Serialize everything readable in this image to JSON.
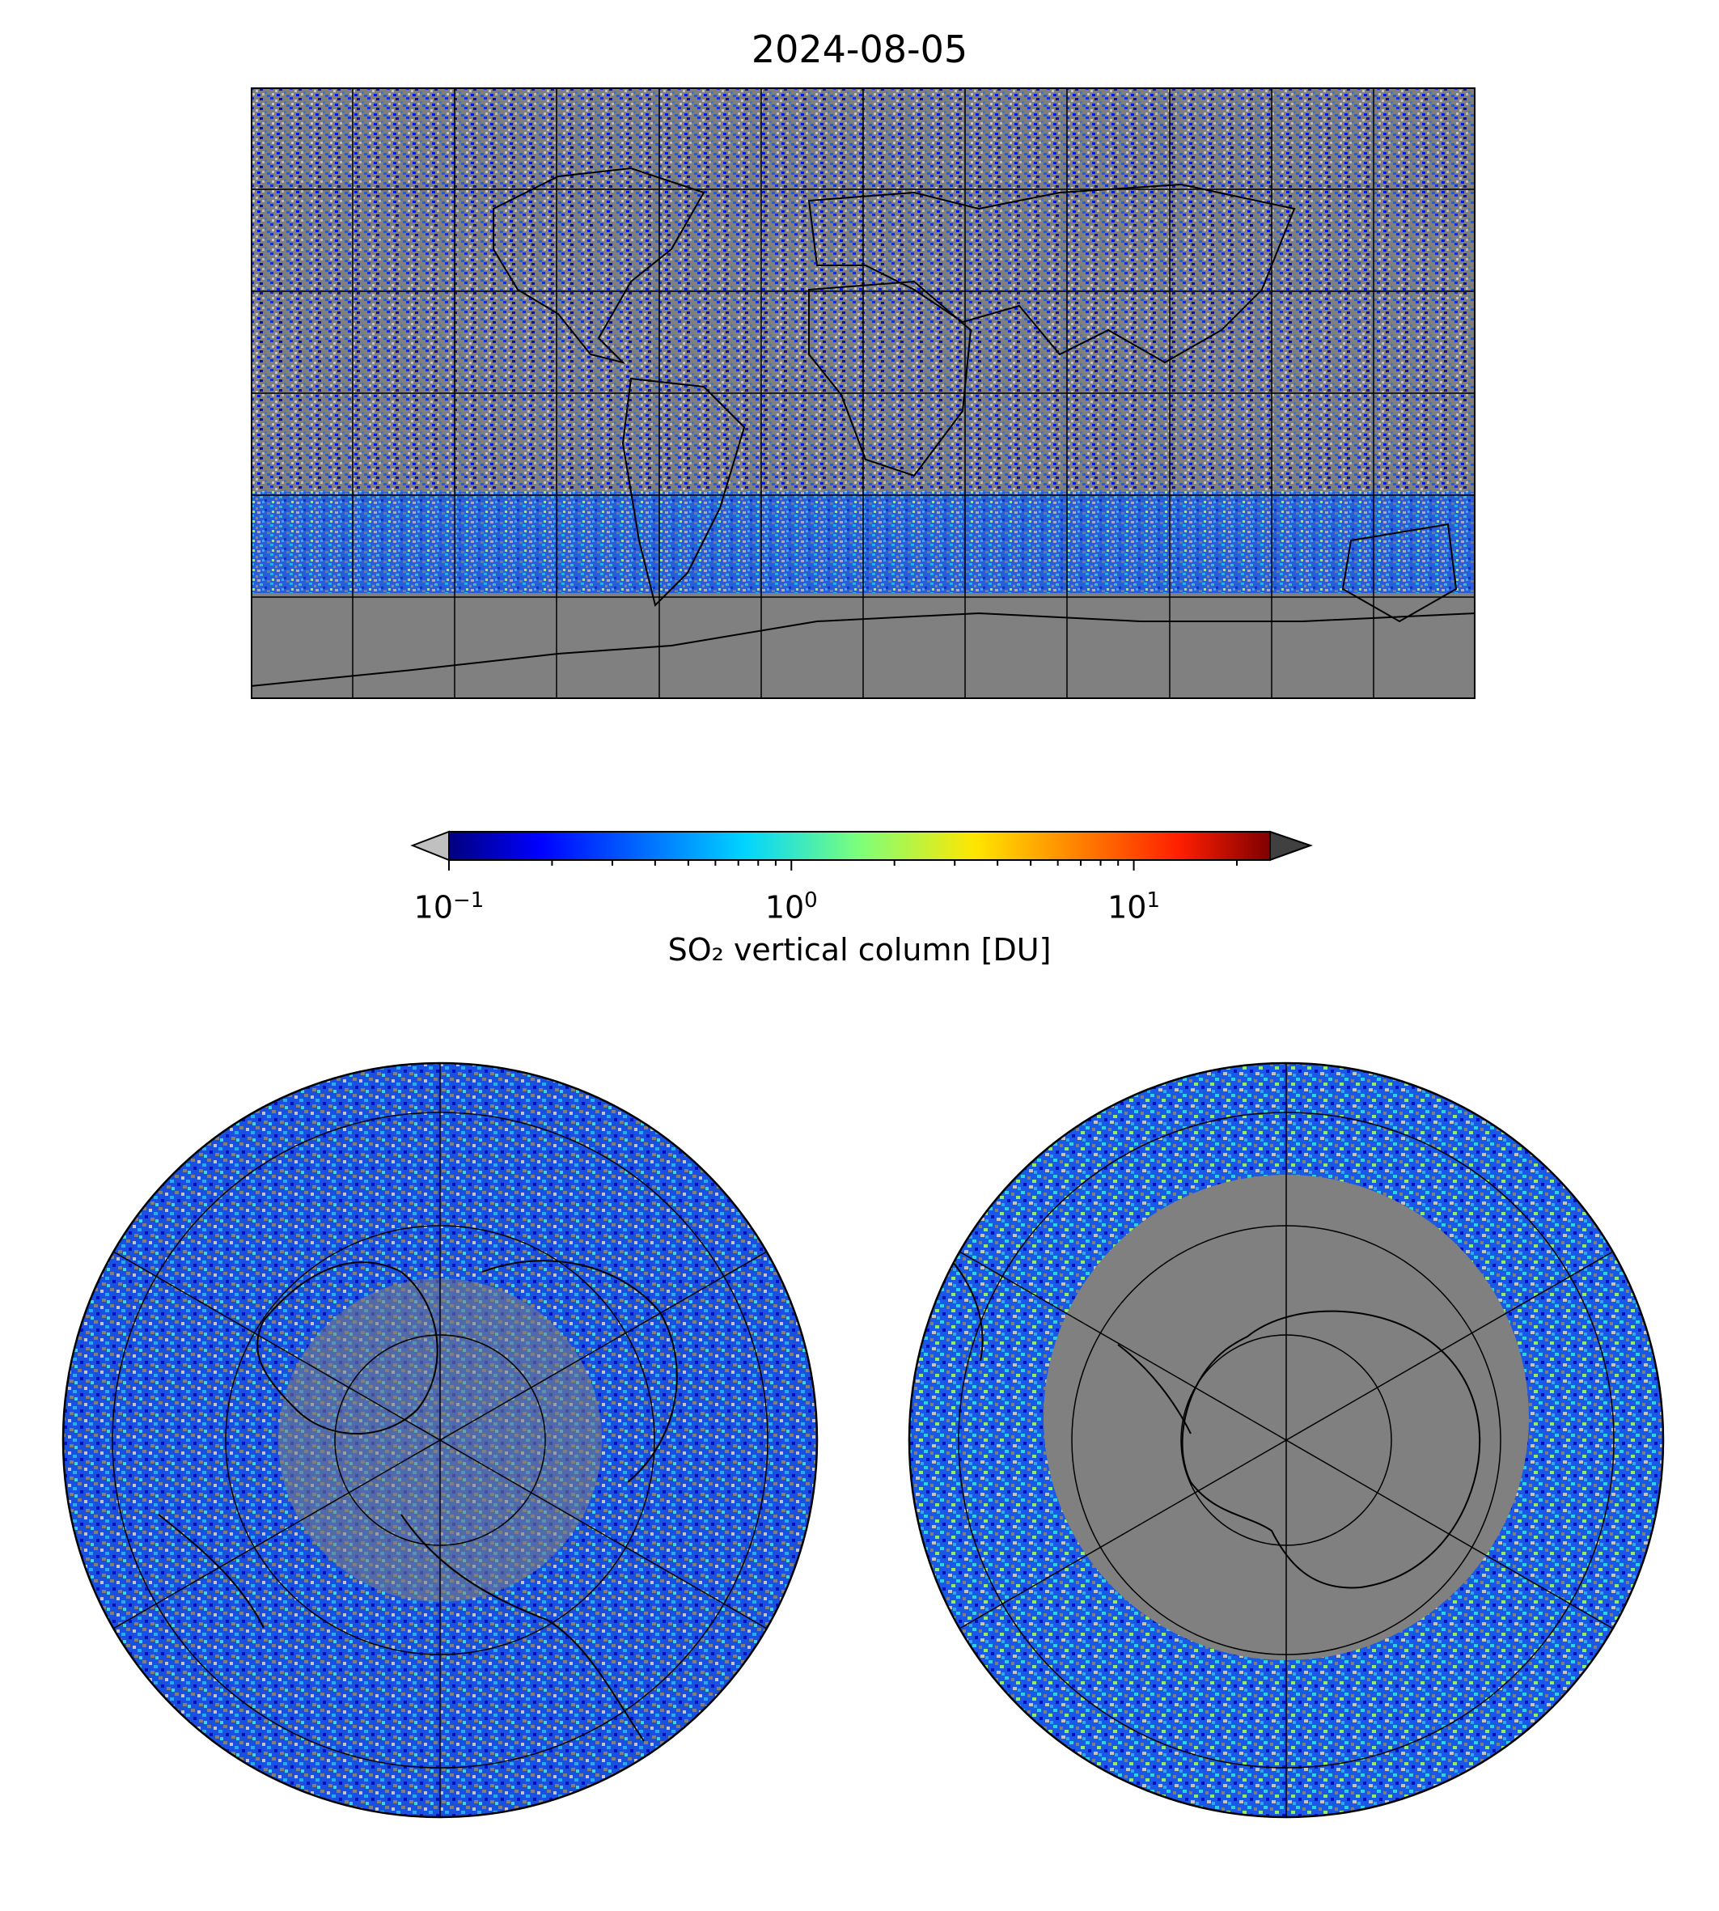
{
  "title": "2024-08-05",
  "colorbar": {
    "label": "SO₂ vertical column [DU]",
    "scale": "log",
    "vmin": 0.1,
    "vmax": 25,
    "colormap": "jet",
    "extend": "both",
    "under_color": "#c0c0c0",
    "over_color": "#404040",
    "ticks": [
      {
        "value": 0.1,
        "base": "10",
        "exp": "−1"
      },
      {
        "value": 1,
        "base": "10",
        "exp": "0"
      },
      {
        "value": 10,
        "base": "10",
        "exp": "1"
      }
    ]
  },
  "colors": {
    "no_data": "#808080",
    "below_range": "#c0c0c0",
    "coastline": "#000000"
  },
  "maps": {
    "world": {
      "projection": "plate-carree",
      "grid_lon_step": 30,
      "grid_lat_step": 30
    },
    "north": {
      "projection": "north-polar-stereographic"
    },
    "south": {
      "projection": "south-polar-stereographic"
    }
  }
}
